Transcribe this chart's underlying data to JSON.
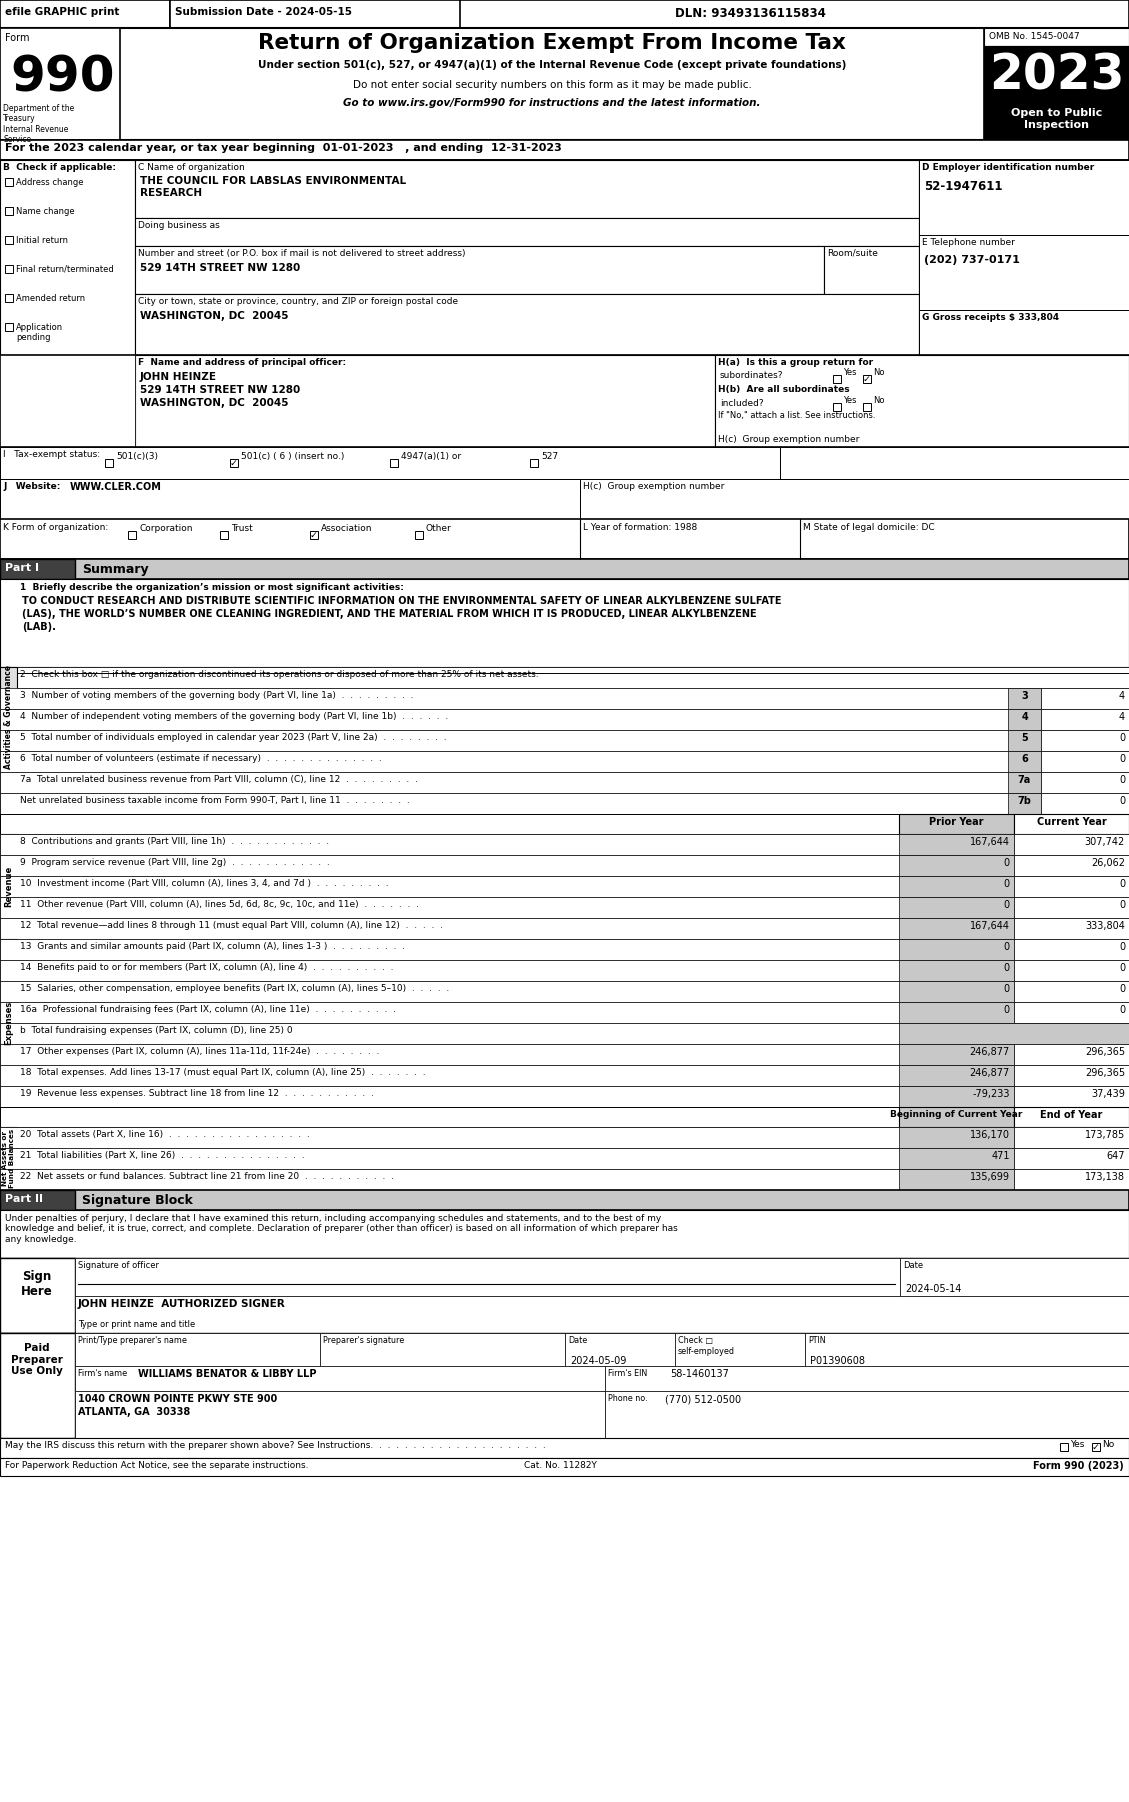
{
  "efile_header": "efile GRAPHIC print",
  "submission_date": "Submission Date - 2024-05-15",
  "dln": "DLN: 93493136115834",
  "form_number": "990",
  "title": "Return of Organization Exempt From Income Tax",
  "subtitle1": "Under section 501(c), 527, or 4947(a)(1) of the Internal Revenue Code (except private foundations)",
  "subtitle2": "Do not enter social security numbers on this form as it may be made public.",
  "subtitle3": "Go to www.irs.gov/Form990 for instructions and the latest information.",
  "omb": "OMB No. 1545-0047",
  "year": "2023",
  "open_public": "Open to Public\nInspection",
  "dept_treasury": "Department of the\nTreasury\nInternal Revenue\nService",
  "line_a": "For the 2023 calendar year, or tax year beginning  01-01-2023   , and ending  12-31-2023",
  "b_label": "B  Check if applicable:",
  "check_items": [
    "Address change",
    "Name change",
    "Initial return",
    "Final return/terminated",
    "Amended return",
    "Application\npending"
  ],
  "c_label": "C Name of organization",
  "org_name_line1": "THE COUNCIL FOR LABSLAS ENVIRONMENTAL",
  "org_name_line2": "RESEARCH",
  "dba_label": "Doing business as",
  "addr_label": "Number and street (or P.O. box if mail is not delivered to street address)",
  "addr_value": "529 14TH STREET NW 1280",
  "room_label": "Room/suite",
  "city_label": "City or town, state or province, country, and ZIP or foreign postal code",
  "city_value": "WASHINGTON, DC  20045",
  "d_label": "D Employer identification number",
  "ein": "52-1947611",
  "e_label": "E Telephone number",
  "phone": "(202) 737-0171",
  "g_label": "G Gross receipts $",
  "g_val": "333,804",
  "f_label": "F  Name and address of principal officer:",
  "officer_name": "JOHN HEINZE",
  "officer_addr1": "529 14TH STREET NW 1280",
  "officer_addr2": "WASHINGTON, DC  20045",
  "ha_label": "H(a)  Is this a group return for",
  "ha_q": "subordinates?",
  "hb_label": "H(b)  Are all subordinates",
  "hb_q": "included?",
  "if_no": "If \"No,\" attach a list. See instructions.",
  "hc_label": "H(c)  Group exemption number",
  "i_label": "I   Tax-exempt status:",
  "tax_exempt_options": [
    "501(c)(3)",
    "501(c) ( 6 ) (insert no.)",
    "4947(a)(1) or",
    "527"
  ],
  "j_label": "J   Website:",
  "website": "WWW.CLER.COM",
  "k_label": "K Form of organization:",
  "k_options": [
    "Corporation",
    "Trust",
    "Association",
    "Other"
  ],
  "l_label": "L Year of formation: 1988",
  "m_label": "M State of legal domicile: DC",
  "part1_label": "Part I",
  "part1_title": "Summary",
  "line1_label": "1  Briefly describe the organization’s mission or most significant activities:",
  "mission_line1": "TO CONDUCT RESEARCH AND DISTRIBUTE SCIENTIFIC INFORMATION ON THE ENVIRONMENTAL SAFETY OF LINEAR ALKYLBENZENE SULFATE",
  "mission_line2": "(LAS), THE WORLD’S NUMBER ONE CLEANING INGREDIENT, AND THE MATERIAL FROM WHICH IT IS PRODUCED, LINEAR ALKYLBENZENE",
  "mission_line3": "(LAB).",
  "line2": "2  Check this box □ if the organization discontinued its operations or disposed of more than 25% of its net assets.",
  "line3": "3  Number of voting members of the governing body (Part VI, line 1a)  .  .  .  .  .  .  .  .  .",
  "line3_num": "3",
  "line3_val": "4",
  "line4": "4  Number of independent voting members of the governing body (Part VI, line 1b)  .  .  .  .  .  .",
  "line4_num": "4",
  "line4_val": "4",
  "line5": "5  Total number of individuals employed in calendar year 2023 (Part V, line 2a)  .  .  .  .  .  .  .  .",
  "line5_num": "5",
  "line5_val": "0",
  "line6": "6  Total number of volunteers (estimate if necessary)  .  .  .  .  .  .  .  .  .  .  .  .  .  .",
  "line6_num": "6",
  "line6_val": "0",
  "line7a": "7a  Total unrelated business revenue from Part VIII, column (C), line 12  .  .  .  .  .  .  .  .  .",
  "line7a_num": "7a",
  "line7a_val": "0",
  "line7b": "Net unrelated business taxable income from Form 990-T, Part I, line 11  .  .  .  .  .  .  .  .",
  "line7b_num": "7b",
  "line7b_val": "0",
  "prior_year_label": "Prior Year",
  "current_year_label": "Current Year",
  "line8": "8  Contributions and grants (Part VIII, line 1h)  .  .  .  .  .  .  .  .  .  .  .  .",
  "line8_prior": "167,644",
  "line8_current": "307,742",
  "line9": "9  Program service revenue (Part VIII, line 2g)  .  .  .  .  .  .  .  .  .  .  .  .",
  "line9_prior": "0",
  "line9_current": "26,062",
  "line10": "10  Investment income (Part VIII, column (A), lines 3, 4, and 7d )  .  .  .  .  .  .  .  .  .",
  "line10_prior": "0",
  "line10_current": "0",
  "line11": "11  Other revenue (Part VIII, column (A), lines 5d, 6d, 8c, 9c, 10c, and 11e)  .  .  .  .  .  .  .",
  "line11_prior": "0",
  "line11_current": "0",
  "line12": "12  Total revenue—add lines 8 through 11 (must equal Part VIII, column (A), line 12)  .  .  .  .  .",
  "line12_prior": "167,644",
  "line12_current": "333,804",
  "line13": "13  Grants and similar amounts paid (Part IX, column (A), lines 1-3 )  .  .  .  .  .  .  .  .  .",
  "line13_prior": "0",
  "line13_current": "0",
  "line14": "14  Benefits paid to or for members (Part IX, column (A), line 4)  .  .  .  .  .  .  .  .  .  .",
  "line14_prior": "0",
  "line14_current": "0",
  "line15": "15  Salaries, other compensation, employee benefits (Part IX, column (A), lines 5–10)  .  .  .  .  .",
  "line15_prior": "0",
  "line15_current": "0",
  "line16a": "16a  Professional fundraising fees (Part IX, column (A), line 11e)  .  .  .  .  .  .  .  .  .  .",
  "line16a_prior": "0",
  "line16a_current": "0",
  "line16b": "b  Total fundraising expenses (Part IX, column (D), line 25) 0",
  "line17": "17  Other expenses (Part IX, column (A), lines 11a-11d, 11f-24e)  .  .  .  .  .  .  .  .",
  "line17_prior": "246,877",
  "line17_current": "296,365",
  "line18": "18  Total expenses. Add lines 13-17 (must equal Part IX, column (A), line 25)  .  .  .  .  .  .  .",
  "line18_prior": "246,877",
  "line18_current": "296,365",
  "line19": "19  Revenue less expenses. Subtract line 18 from line 12  .  .  .  .  .  .  .  .  .  .  .",
  "line19_prior": "-79,233",
  "line19_current": "37,439",
  "bcy_label": "Beginning of Current Year",
  "eoy_label": "End of Year",
  "line20": "20  Total assets (Part X, line 16)  .  .  .  .  .  .  .  .  .  .  .  .  .  .  .  .  .",
  "line20_bcy": "136,170",
  "line20_eoy": "173,785",
  "line21": "21  Total liabilities (Part X, line 26)  .  .  .  .  .  .  .  .  .  .  .  .  .  .  .",
  "line21_bcy": "471",
  "line21_eoy": "647",
  "line22": "22  Net assets or fund balances. Subtract line 21 from line 20  .  .  .  .  .  .  .  .  .  .  .",
  "line22_bcy": "135,699",
  "line22_eoy": "173,138",
  "part2_label": "Part II",
  "part2_title": "Signature Block",
  "sig_text": "Under penalties of perjury, I declare that I have examined this return, including accompanying schedules and statements, and to the best of my\nknowledge and belief, it is true, correct, and complete. Declaration of preparer (other than officer) is based on all information of which preparer has\nany knowledge.",
  "sign_here": "Sign\nHere",
  "sig_officer_label": "Signature of officer",
  "sig_date_label": "Date",
  "sig_date_val": "2024-05-14",
  "sig_name": "JOHN HEINZE  AUTHORIZED SIGNER",
  "sig_title_label": "Type or print name and title",
  "paid_preparer": "Paid\nPreparer\nUse Only",
  "preparer_name_label": "Print/Type preparer's name",
  "preparer_sig_label": "Preparer's signature",
  "preparer_date_label": "Date",
  "preparer_date_val": "2024-05-09",
  "check_self_label": "Check",
  "self_employed_label": "self-employed",
  "ptin_label": "PTIN",
  "ptin_val": "P01390608",
  "firm_name_label": "Firm's name",
  "firm_name": "WILLIAMS BENATOR & LIBBY LLP",
  "firm_ein_label": "Firm's EIN",
  "firm_ein": "58-1460137",
  "firm_addr": "1040 CROWN POINTE PKWY STE 900",
  "firm_city": "ATLANTA, GA  30338",
  "phone_label": "Phone no.",
  "phone_val": "(770) 512-0500",
  "discuss_label": "May the IRS discuss this return with the preparer shown above? See Instructions.  .  .  .  .  .  .  .  .  .  .  .  .  .  .  .  .  .  .  .  .",
  "paperwork_label": "For Paperwork Reduction Act Notice, see the separate instructions.",
  "cat_no": "Cat. No. 11282Y",
  "form990_footer": "Form 990 (2023)"
}
